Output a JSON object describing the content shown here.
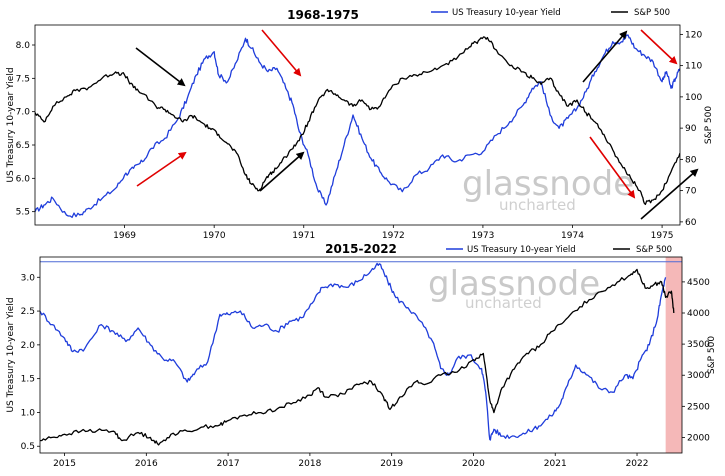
{
  "chart_data": [
    {
      "type": "line",
      "title": "1968-1975",
      "ylabel": "US Treasury 10-year Yield",
      "y2label": "S&P 500",
      "xlim": [
        1968.0,
        1975.2
      ],
      "ylim": [
        5.3,
        8.3
      ],
      "y2lim": [
        59,
        123
      ],
      "x_ticks": [
        1969,
        1970,
        1971,
        1972,
        1973,
        1974,
        1975
      ],
      "y_ticks": [
        "5.5",
        "6.0",
        "6.5",
        "7.0",
        "7.5",
        "8.0"
      ],
      "y2_ticks": [
        "60",
        "70",
        "80",
        "90",
        "100",
        "110",
        "120"
      ],
      "legend_position": "top-right",
      "watermark": {
        "main": "glassnode",
        "sub": "uncharted"
      },
      "series": [
        {
          "name": "US Treasury 10-year Yield",
          "axis": "left",
          "color": "#1f3ddb",
          "x": [
            1968.0,
            1968.1,
            1968.2,
            1968.35,
            1968.5,
            1968.6,
            1968.75,
            1968.9,
            1969.0,
            1969.1,
            1969.2,
            1969.3,
            1969.45,
            1969.6,
            1969.7,
            1969.8,
            1969.9,
            1970.0,
            1970.05,
            1970.15,
            1970.25,
            1970.35,
            1970.42,
            1970.5,
            1970.6,
            1970.7,
            1970.8,
            1970.88,
            1970.95,
            1971.05,
            1971.15,
            1971.25,
            1971.35,
            1971.45,
            1971.55,
            1971.65,
            1971.75,
            1971.85,
            1971.95,
            1972.1,
            1972.25,
            1972.4,
            1972.55,
            1972.7,
            1972.85,
            1973.0,
            1973.15,
            1973.3,
            1973.45,
            1973.55,
            1973.65,
            1973.75,
            1973.85,
            1973.95,
            1974.05,
            1974.15,
            1974.25,
            1974.35,
            1974.45,
            1974.55,
            1974.62,
            1974.7,
            1974.8,
            1974.9,
            1975.0,
            1975.05,
            1975.1,
            1975.15,
            1975.2
          ],
          "values": [
            5.5,
            5.6,
            5.7,
            5.45,
            5.45,
            5.55,
            5.7,
            5.85,
            6.05,
            6.15,
            6.25,
            6.45,
            6.6,
            6.9,
            7.2,
            7.55,
            7.8,
            7.9,
            7.55,
            7.45,
            7.75,
            8.1,
            7.95,
            7.75,
            7.6,
            7.65,
            7.35,
            7.1,
            6.7,
            6.35,
            5.85,
            5.6,
            6.05,
            6.5,
            6.95,
            6.6,
            6.3,
            6.1,
            5.95,
            5.8,
            6.05,
            6.15,
            6.35,
            6.25,
            6.35,
            6.4,
            6.65,
            6.85,
            7.1,
            7.35,
            7.45,
            6.95,
            6.75,
            6.9,
            7.05,
            7.3,
            7.6,
            7.85,
            8.05,
            8.05,
            8.15,
            7.95,
            7.85,
            7.75,
            7.45,
            7.6,
            7.35,
            7.5,
            7.65
          ]
        },
        {
          "name": "S&P 500",
          "axis": "right",
          "color": "#000000",
          "x": [
            1968.0,
            1968.1,
            1968.2,
            1968.35,
            1968.45,
            1968.6,
            1968.75,
            1968.9,
            1969.0,
            1969.1,
            1969.2,
            1969.35,
            1969.45,
            1969.55,
            1969.65,
            1969.75,
            1969.85,
            1969.95,
            1970.05,
            1970.15,
            1970.25,
            1970.35,
            1970.42,
            1970.5,
            1970.58,
            1970.65,
            1970.75,
            1970.85,
            1970.95,
            1971.05,
            1971.15,
            1971.25,
            1971.35,
            1971.45,
            1971.55,
            1971.65,
            1971.75,
            1971.85,
            1971.95,
            1972.1,
            1972.25,
            1972.4,
            1972.55,
            1972.7,
            1972.85,
            1972.95,
            1973.05,
            1973.15,
            1973.3,
            1973.45,
            1973.55,
            1973.65,
            1973.75,
            1973.85,
            1973.95,
            1974.05,
            1974.15,
            1974.25,
            1974.35,
            1974.45,
            1974.55,
            1974.65,
            1974.75,
            1974.8,
            1974.9,
            1975.0,
            1975.1,
            1975.2
          ],
          "values": [
            95,
            92,
            97,
            100,
            102,
            103,
            106,
            108,
            107,
            103,
            101,
            97,
            96,
            94,
            92,
            94,
            92,
            90,
            88,
            85,
            82,
            75,
            72,
            70,
            74,
            76,
            79,
            83,
            86,
            92,
            98,
            102,
            101,
            99,
            97,
            99,
            96,
            97,
            102,
            106,
            107,
            108,
            110,
            112,
            116,
            118,
            119,
            115,
            110,
            108,
            106,
            104,
            106,
            101,
            97,
            99,
            95,
            92,
            88,
            83,
            78,
            74,
            70,
            66,
            67,
            70,
            76,
            82
          ]
        }
      ],
      "annotations": [
        "black-arrow",
        "red-arrow",
        "red-arrow",
        "black-arrow",
        "black-arrow",
        "red-arrow",
        "red-arrow",
        "black-arrow",
        "black-arrow"
      ]
    },
    {
      "type": "line",
      "title": "2015-2022",
      "ylabel": "US Treasury 10-year Yield",
      "y2label": "S&P 500",
      "xlim": [
        2014.7,
        2022.55
      ],
      "ylim": [
        0.4,
        3.3
      ],
      "y2lim": [
        1750,
        4900
      ],
      "x_ticks": [
        2015,
        2016,
        2017,
        2018,
        2019,
        2020,
        2021,
        2022
      ],
      "y_ticks": [
        "0.5",
        "1.0",
        "1.5",
        "2.0",
        "2.5",
        "3.0"
      ],
      "y2_ticks": [
        "2000",
        "2500",
        "3000",
        "3500",
        "4000",
        "4500"
      ],
      "legend_position": "top-right",
      "watermark": {
        "main": "glassnode",
        "sub": "uncharted"
      },
      "reference_line": {
        "value": 3.23,
        "color": "#4f6ad6"
      },
      "shaded_region": {
        "x_start": 2022.35,
        "x_end": 2022.55,
        "color": "#f5b8b8"
      },
      "series": [
        {
          "name": "US Treasury 10-year Yield",
          "axis": "left",
          "color": "#1f3ddb",
          "x": [
            2014.7,
            2014.85,
            2015.0,
            2015.1,
            2015.25,
            2015.45,
            2015.6,
            2015.75,
            2015.9,
            2016.05,
            2016.2,
            2016.35,
            2016.5,
            2016.6,
            2016.75,
            2016.9,
            2017.0,
            2017.15,
            2017.3,
            2017.45,
            2017.6,
            2017.75,
            2017.9,
            2018.05,
            2018.15,
            2018.3,
            2018.45,
            2018.6,
            2018.75,
            2018.85,
            2018.95,
            2019.05,
            2019.2,
            2019.35,
            2019.5,
            2019.6,
            2019.7,
            2019.8,
            2019.95,
            2020.1,
            2020.15,
            2020.2,
            2020.25,
            2020.35,
            2020.5,
            2020.65,
            2020.8,
            2020.95,
            2021.05,
            2021.15,
            2021.25,
            2021.4,
            2021.55,
            2021.7,
            2021.85,
            2021.95,
            2022.05,
            2022.15,
            2022.25,
            2022.3,
            2022.35
          ],
          "values": [
            2.5,
            2.3,
            2.1,
            1.9,
            1.95,
            2.3,
            2.2,
            2.05,
            2.25,
            2.0,
            1.8,
            1.75,
            1.45,
            1.6,
            1.75,
            2.45,
            2.45,
            2.5,
            2.25,
            2.3,
            2.2,
            2.35,
            2.4,
            2.65,
            2.85,
            2.9,
            2.85,
            2.95,
            3.1,
            3.2,
            2.95,
            2.7,
            2.55,
            2.35,
            2.05,
            1.65,
            1.55,
            1.8,
            1.85,
            1.65,
            1.3,
            0.6,
            0.75,
            0.65,
            0.65,
            0.7,
            0.8,
            0.95,
            1.1,
            1.4,
            1.7,
            1.55,
            1.35,
            1.3,
            1.55,
            1.5,
            1.8,
            2.0,
            2.4,
            2.75,
            3.0
          ]
        },
        {
          "name": "S&P 500",
          "axis": "right",
          "color": "#000000",
          "x": [
            2014.7,
            2014.85,
            2015.0,
            2015.2,
            2015.4,
            2015.6,
            2015.7,
            2015.9,
            2016.05,
            2016.15,
            2016.3,
            2016.5,
            2016.7,
            2016.9,
            2017.0,
            2017.2,
            2017.4,
            2017.6,
            2017.8,
            2018.0,
            2018.1,
            2018.2,
            2018.4,
            2018.6,
            2018.75,
            2018.9,
            2018.98,
            2019.1,
            2019.3,
            2019.4,
            2019.6,
            2019.8,
            2020.0,
            2020.12,
            2020.2,
            2020.25,
            2020.35,
            2020.5,
            2020.65,
            2020.8,
            2020.95,
            2021.1,
            2021.3,
            2021.5,
            2021.7,
            2021.9,
            2022.0,
            2022.1,
            2022.2,
            2022.3,
            2022.35,
            2022.42,
            2022.45
          ],
          "values": [
            1950,
            2000,
            2050,
            2100,
            2110,
            2100,
            1950,
            2080,
            2000,
            1880,
            2050,
            2100,
            2170,
            2200,
            2270,
            2360,
            2400,
            2460,
            2560,
            2680,
            2800,
            2650,
            2700,
            2850,
            2900,
            2650,
            2450,
            2650,
            2900,
            2850,
            3000,
            3050,
            3250,
            3350,
            2600,
            2400,
            2800,
            3100,
            3350,
            3450,
            3700,
            3850,
            4100,
            4300,
            4450,
            4600,
            4700,
            4400,
            4450,
            4500,
            4250,
            4350,
            4000
          ]
        }
      ]
    }
  ]
}
